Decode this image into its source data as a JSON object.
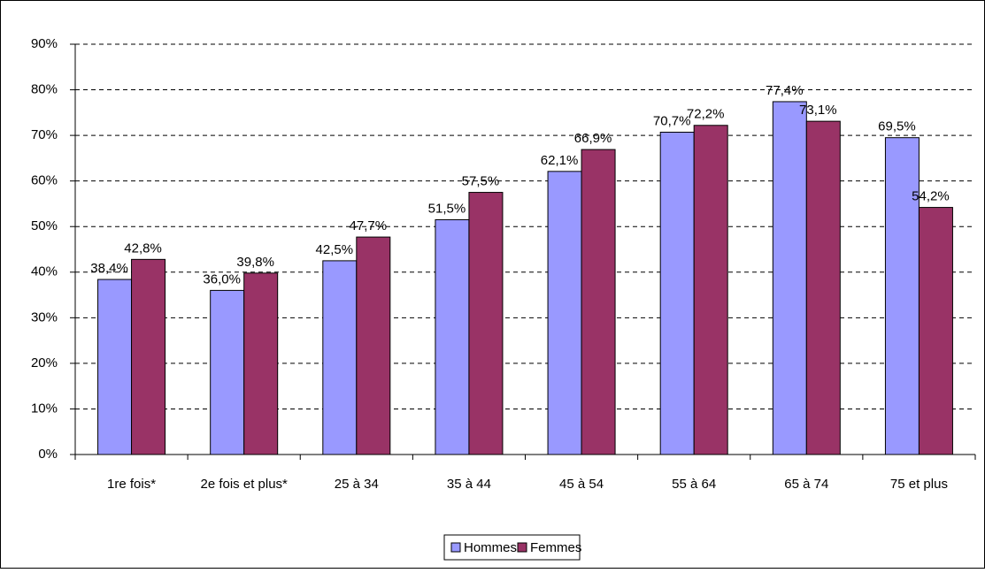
{
  "chart_data": {
    "type": "bar",
    "categories": [
      "1re fois*",
      "2e fois et plus*",
      "25 à 34",
      "35 à 44",
      "45 à 54",
      "55 à 64",
      "65 à 74",
      "75 et plus"
    ],
    "series": [
      {
        "name": "Hommes",
        "color": "#9999ff",
        "values": [
          38.4,
          36.0,
          42.5,
          51.5,
          62.1,
          70.7,
          77.4,
          69.5
        ],
        "value_labels": [
          "38,4%",
          "36,0%",
          "42,5%",
          "51,5%",
          "62,1%",
          "70,7%",
          "77,4%",
          "69,5%"
        ]
      },
      {
        "name": "Femmes",
        "color": "#993366",
        "values": [
          42.8,
          39.8,
          47.7,
          57.5,
          66.9,
          72.2,
          73.1,
          54.2
        ],
        "value_labels": [
          "42,8%",
          "39,8%",
          "47,7%",
          "57,5%",
          "66,9%",
          "72,2%",
          "73,1%",
          "54,2%"
        ]
      }
    ],
    "ylim": [
      0,
      90
    ],
    "yticks": [
      {
        "value": 0,
        "label": "0%"
      },
      {
        "value": 10,
        "label": "10%"
      },
      {
        "value": 20,
        "label": "20%"
      },
      {
        "value": 30,
        "label": "30%"
      },
      {
        "value": 40,
        "label": "40%"
      },
      {
        "value": 50,
        "label": "50%"
      },
      {
        "value": 60,
        "label": "60%"
      },
      {
        "value": 70,
        "label": "70%"
      },
      {
        "value": 80,
        "label": "80%"
      },
      {
        "value": 90,
        "label": "90%"
      }
    ],
    "grid": true,
    "legend": "bottom"
  }
}
